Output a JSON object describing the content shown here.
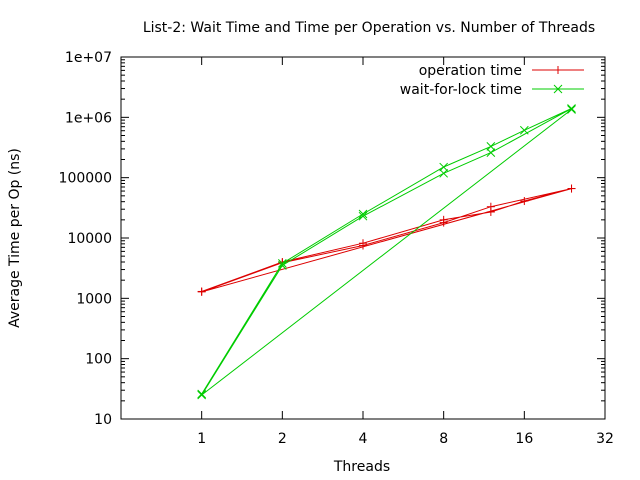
{
  "chart_data": {
    "type": "line",
    "title": "List-2: Wait Time and Time per Operation vs. Number of Threads",
    "xlabel": "Threads",
    "ylabel": "Average Time per Op (ns)",
    "x_scale": "log2",
    "y_scale": "log10",
    "xlim": [
      0.5,
      32
    ],
    "ylim": [
      10,
      10000000
    ],
    "x_ticks": [
      {
        "value": 1,
        "label": "1"
      },
      {
        "value": 2,
        "label": "2"
      },
      {
        "value": 4,
        "label": "4"
      },
      {
        "value": 8,
        "label": "8"
      },
      {
        "value": 16,
        "label": "16"
      },
      {
        "value": 32,
        "label": "32"
      }
    ],
    "y_ticks": [
      {
        "value": 10,
        "label": "10"
      },
      {
        "value": 100,
        "label": "100"
      },
      {
        "value": 1000,
        "label": "1000"
      },
      {
        "value": 10000,
        "label": "10000"
      },
      {
        "value": 100000,
        "label": "100000"
      },
      {
        "value": 1000000,
        "label": "1e+06"
      },
      {
        "value": 10000000,
        "label": "1e+07"
      }
    ],
    "legend_position": "top-right",
    "series": [
      {
        "name": "operation time",
        "color": "#dd0000",
        "marker": "plus",
        "points": [
          [
            1,
            1300
          ],
          [
            2,
            4000
          ],
          [
            4,
            8200
          ],
          [
            8,
            20000
          ],
          [
            12,
            27000
          ],
          [
            16,
            41000
          ],
          [
            24,
            66000
          ],
          [
            12,
            33000
          ],
          [
            8,
            18000
          ],
          [
            4,
            7500
          ],
          [
            2,
            3900
          ],
          [
            1,
            1280
          ],
          [
            24,
            66000
          ]
        ]
      },
      {
        "name": "wait-for-lock time",
        "color": "#00cc00",
        "marker": "cross",
        "points": [
          [
            1,
            26
          ],
          [
            2,
            3800
          ],
          [
            4,
            25000
          ],
          [
            8,
            150000
          ],
          [
            12,
            330000
          ],
          [
            16,
            610000
          ],
          [
            24,
            1400000
          ],
          [
            12,
            260000
          ],
          [
            8,
            118000
          ],
          [
            4,
            23000
          ],
          [
            2,
            3500
          ],
          [
            1,
            25
          ],
          [
            24,
            1350000
          ]
        ]
      }
    ]
  }
}
